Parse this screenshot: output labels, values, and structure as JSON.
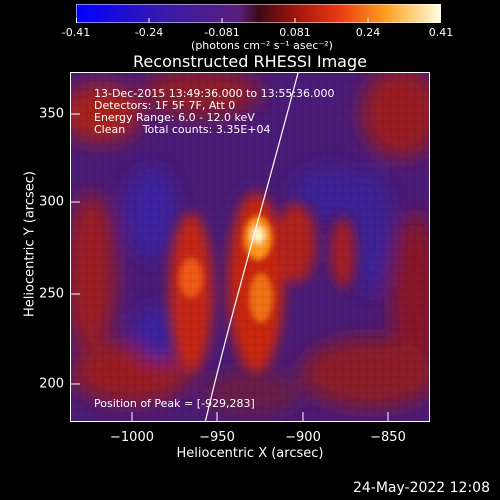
{
  "colorbar": {
    "ticks": [
      "-0.41",
      "-0.24",
      "-0.081",
      "0.081",
      "0.24",
      "0.41"
    ],
    "units": "(photons cm⁻² s⁻¹ asec⁻²)"
  },
  "title": "Reconstructed RHESSI Image",
  "info": {
    "time": "13-Dec-2015 13:49:36.000 to 13:55:36.000",
    "detectors": "Detectors: 1F 5F 7F, Att 0",
    "energy": "Energy Range: 6.0 - 12.0 keV",
    "clean": "Clean     Total counts: 3.35E+04",
    "peak": "Position of Peak = [-929,283]"
  },
  "axes": {
    "xlabel": "Heliocentric X (arcsec)",
    "ylabel": "Heliocentric Y (arcsec)",
    "xticks": [
      "−1000",
      "−950",
      "−900",
      "−850"
    ],
    "yticks": [
      "350",
      "300",
      "250",
      "200"
    ]
  },
  "timestamp": "24-May-2022 12:08",
  "colors": {
    "background": "#000000",
    "frame": "#ffffff",
    "limb": "#ffffff"
  }
}
